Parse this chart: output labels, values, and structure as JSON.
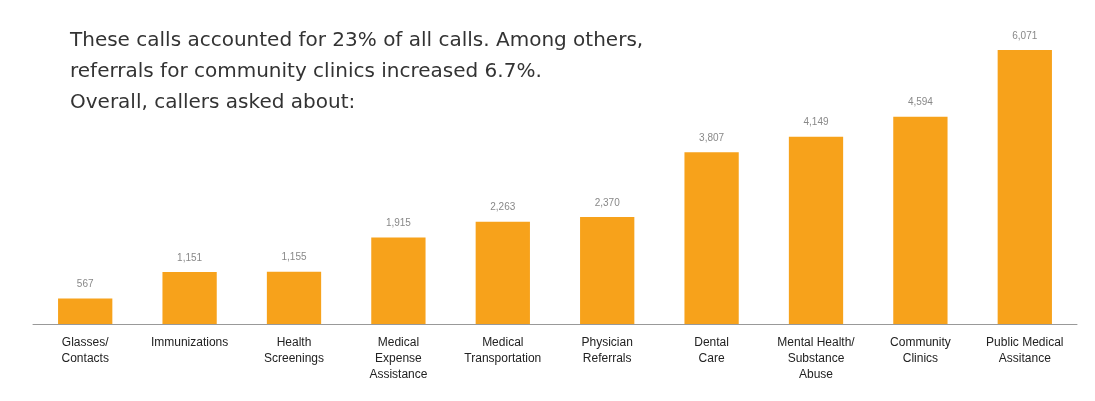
{
  "chart_data": {
    "type": "bar",
    "title": "These calls accounted for 23% of all calls. Among others,\nreferrals for community clinics increased 6.7%.\nOverall, callers asked about:",
    "categories": [
      "Glasses/\nContacts",
      "Immunizations",
      "Health\nScreenings",
      "Medical\nExpense\nAssistance",
      "Medical\nTransportation",
      "Physician\nReferrals",
      "Dental\nCare",
      "Mental Health/\nSubstance\nAbuse",
      "Community\nClinics",
      "Public Medical\nAssitance"
    ],
    "values": [
      567,
      1151,
      1155,
      1915,
      2263,
      2370,
      3807,
      4149,
      4594,
      6071
    ],
    "value_labels": [
      "567",
      "1,151",
      "1,155",
      "1,915",
      "2,263",
      "2,370",
      "3,807",
      "4,149",
      "4,594",
      "6,071"
    ],
    "color": "#f7a21b",
    "grid": false
  }
}
